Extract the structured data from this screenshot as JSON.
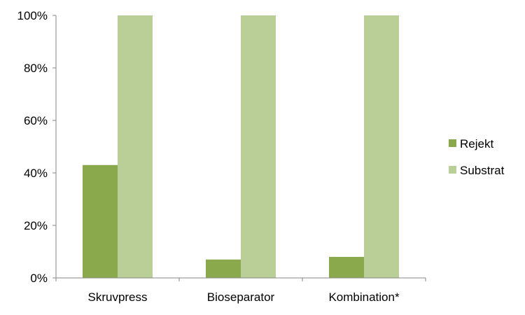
{
  "chart_data": {
    "type": "bar",
    "categories": [
      "Skruvpress",
      "Bioseparator",
      "Kombination*"
    ],
    "series": [
      {
        "name": "Rejekt",
        "color": "#8aa84c",
        "values": [
          43,
          7,
          8
        ]
      },
      {
        "name": "Substrat",
        "color": "#bacf98",
        "values": [
          100,
          100,
          100
        ]
      }
    ],
    "ylim": [
      0,
      100
    ],
    "yticks": [
      0,
      20,
      40,
      60,
      80,
      100
    ],
    "ytick_labels": [
      "0%",
      "20%",
      "40%",
      "60%",
      "80%",
      "100%"
    ],
    "grid": false,
    "legend_position": "right",
    "title": "",
    "xlabel": "",
    "ylabel": ""
  }
}
